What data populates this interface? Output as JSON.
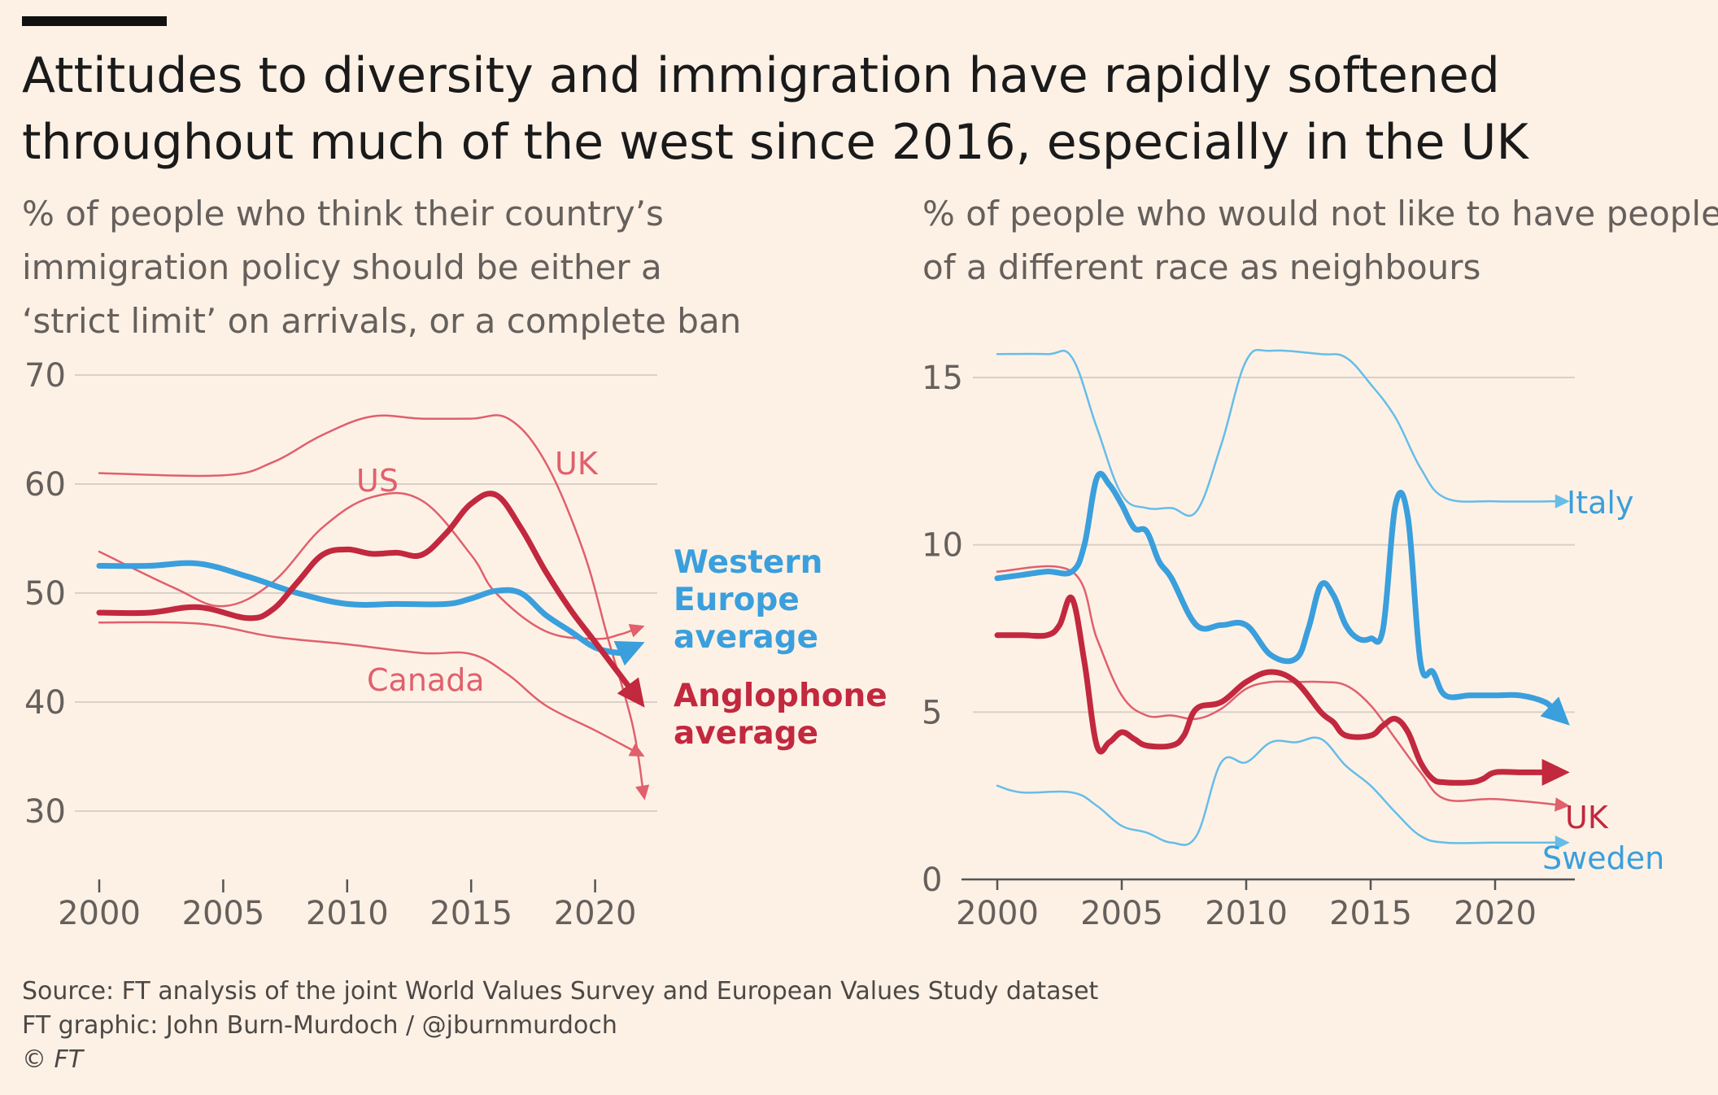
{
  "headline": "Attitudes to diversity and immigration have rapidly softened throughout much of the west since 2016, especially in the UK",
  "colors": {
    "background": "#fdf1e6",
    "red_thin": "#e0606c",
    "red_thick": "#c2283e",
    "blue_thin": "#66bde8",
    "blue_thick": "#3a9fdc",
    "grid": "#d9d0c8",
    "text": "#66605c"
  },
  "footer": {
    "source": "Source: FT analysis of the joint World Values Survey and European Values Study dataset",
    "graphic": "FT graphic: John Burn-Murdoch / @jburnmurdoch",
    "copyright": "© FT"
  },
  "chart_data": [
    {
      "type": "line",
      "subtitle": [
        "% of people who think their country’s",
        "immigration policy should be either a",
        "‘strict limit’ on arrivals, or a complete ban"
      ],
      "xlim": [
        2000,
        2022
      ],
      "ylim": [
        30,
        70
      ],
      "x_ticks": [
        2000,
        2005,
        2010,
        2015,
        2020
      ],
      "y_ticks": [
        30,
        40,
        50,
        60,
        70
      ],
      "grid": true,
      "series": [
        {
          "name": "UK",
          "style": "red_thin",
          "x": [
            2000,
            2005,
            2007,
            2009,
            2011,
            2013,
            2015,
            2016.5,
            2018,
            2019.5,
            2020.5,
            2021.5,
            2022
          ],
          "y": [
            61,
            60.8,
            62,
            64.5,
            66.2,
            66,
            66,
            66,
            62,
            54,
            46,
            38,
            31
          ]
        },
        {
          "name": "US",
          "style": "red_thin",
          "x": [
            2000,
            2003,
            2005,
            2007,
            2009,
            2011,
            2013,
            2015,
            2016,
            2018,
            2020,
            2021,
            2022
          ],
          "y": [
            53.8,
            50.5,
            48.8,
            51,
            56,
            58.8,
            58.5,
            53.5,
            50,
            46.5,
            45.8,
            46.2,
            47
          ]
        },
        {
          "name": "Canada",
          "style": "red_thin",
          "x": [
            2000,
            2004,
            2007,
            2010,
            2013,
            2015,
            2016.5,
            2018,
            2020,
            2022
          ],
          "y": [
            47.3,
            47.2,
            46,
            45.3,
            44.5,
            44.4,
            42.5,
            39.7,
            37.4,
            35
          ]
        },
        {
          "name": "Western Europe average",
          "style": "blue_thick",
          "x": [
            2000,
            2002,
            2004,
            2006,
            2008,
            2010,
            2012,
            2014,
            2015,
            2016,
            2017,
            2018,
            2019,
            2020,
            2021,
            2022
          ],
          "y": [
            52.5,
            52.5,
            52.7,
            51.5,
            50,
            49,
            49,
            49,
            49.5,
            50.2,
            50,
            48,
            46.5,
            45,
            44.5,
            45.5
          ]
        },
        {
          "name": "Anglophone average",
          "style": "red_thick",
          "x": [
            2000,
            2002,
            2004,
            2006,
            2007,
            2008,
            2009,
            2010,
            2011,
            2012,
            2013,
            2014,
            2015,
            2016,
            2017,
            2018,
            2019,
            2020,
            2021,
            2022
          ],
          "y": [
            48.2,
            48.2,
            48.7,
            47.7,
            48.5,
            51,
            53.5,
            54,
            53.6,
            53.7,
            53.5,
            55.5,
            58.2,
            59,
            56,
            52,
            48.5,
            45.5,
            42.5,
            39.5
          ]
        }
      ],
      "labels": {
        "UK": "UK",
        "US": "US",
        "Canada": "Canada",
        "western_europe": [
          "Western",
          "Europe",
          "average"
        ],
        "anglophone": [
          "Anglophone",
          "average"
        ]
      }
    },
    {
      "type": "line",
      "subtitle": [
        "% of people who would not like to have people",
        "of a different race as neighbours"
      ],
      "xlim": [
        2000,
        2023
      ],
      "ylim": [
        0,
        15
      ],
      "x_ticks": [
        2000,
        2005,
        2010,
        2015,
        2020
      ],
      "y_ticks": [
        0,
        5,
        10,
        15
      ],
      "grid": true,
      "series": [
        {
          "name": "Italy",
          "style": "blue_thin",
          "x": [
            2000,
            2002,
            2003,
            2004,
            2005,
            2006,
            2007,
            2008,
            2009,
            2010,
            2011,
            2013,
            2014,
            2015,
            2016,
            2017,
            2018,
            2020,
            2023
          ],
          "y": [
            15.7,
            15.7,
            15.6,
            13.5,
            11.5,
            11.1,
            11.1,
            11,
            13,
            15.5,
            15.8,
            15.7,
            15.6,
            14.8,
            13.8,
            12.3,
            11.4,
            11.3,
            11.3
          ]
        },
        {
          "name": "Sweden",
          "style": "blue_thin",
          "x": [
            2000,
            2001,
            2003,
            2004,
            2005,
            2006,
            2007,
            2008,
            2009,
            2010,
            2011,
            2012,
            2013,
            2014,
            2015,
            2016,
            2017,
            2018,
            2020,
            2023
          ],
          "y": [
            2.8,
            2.6,
            2.6,
            2.2,
            1.6,
            1.4,
            1.1,
            1.3,
            3.5,
            3.5,
            4.1,
            4.1,
            4.2,
            3.4,
            2.8,
            2,
            1.3,
            1.1,
            1.1,
            1.1
          ]
        },
        {
          "name": "UK",
          "style": "red_thin",
          "x": [
            2000,
            2003,
            2004,
            2005,
            2006,
            2007,
            2008,
            2009,
            2010,
            2011,
            2012,
            2013,
            2014,
            2015,
            2016,
            2017,
            2018,
            2020,
            2023
          ],
          "y": [
            9.2,
            9.2,
            7.2,
            5.5,
            4.9,
            4.9,
            4.8,
            5.1,
            5.7,
            5.9,
            5.9,
            5.9,
            5.8,
            5.2,
            4.2,
            3.2,
            2.4,
            2.4,
            2.2
          ]
        },
        {
          "name": "Italy (thick)",
          "style": "blue_thick",
          "x": [
            2000,
            2001,
            2002,
            2003,
            2003.5,
            2004,
            2004.5,
            2005,
            2005.5,
            2006,
            2006.5,
            2007,
            2008,
            2009,
            2010,
            2011,
            2012,
            2012.5,
            2013,
            2013.5,
            2014,
            2014.5,
            2015,
            2015.5,
            2016,
            2016.5,
            2017,
            2017.5,
            2018,
            2019,
            2020,
            2021,
            2022,
            2023
          ],
          "y": [
            9,
            9.1,
            9.2,
            9.2,
            10,
            12,
            11.8,
            11.2,
            10.5,
            10.4,
            9.5,
            9,
            7.6,
            7.6,
            7.6,
            6.7,
            6.6,
            7.5,
            8.8,
            8.5,
            7.6,
            7.2,
            7.2,
            7.5,
            11.2,
            10.8,
            6.5,
            6.2,
            5.5,
            5.5,
            5.5,
            5.5,
            5.3,
            4.6
          ]
        },
        {
          "name": "UK (thick)",
          "style": "red_thick",
          "x": [
            2000,
            2001,
            2002,
            2002.5,
            2003,
            2003.5,
            2004,
            2004.5,
            2005,
            2005.5,
            2006,
            2007,
            2007.5,
            2008,
            2009,
            2010,
            2011,
            2012,
            2013,
            2013.5,
            2014,
            2015,
            2015.5,
            2016,
            2016.5,
            2017,
            2017.5,
            2018,
            2019,
            2019.5,
            2020,
            2021,
            2022,
            2023
          ],
          "y": [
            7.3,
            7.3,
            7.3,
            7.6,
            8.4,
            6.5,
            4,
            4.1,
            4.4,
            4.2,
            4,
            4,
            4.3,
            5.1,
            5.3,
            5.9,
            6.2,
            5.9,
            5,
            4.7,
            4.3,
            4.3,
            4.6,
            4.8,
            4.4,
            3.5,
            3,
            2.9,
            2.9,
            3,
            3.2,
            3.2,
            3.2,
            3.2
          ]
        }
      ],
      "labels": {
        "Italy": "Italy",
        "UK": "UK",
        "Sweden": "Sweden"
      }
    }
  ]
}
